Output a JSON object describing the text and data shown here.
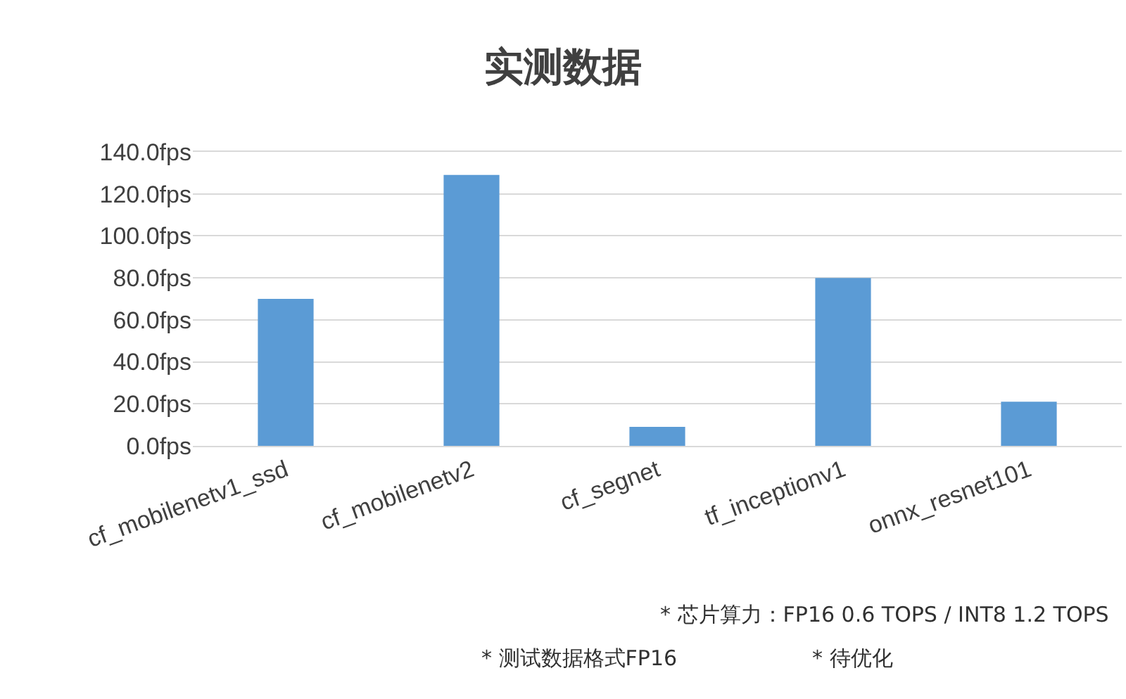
{
  "chart_data": {
    "type": "bar",
    "title": "实测数据",
    "categories": [
      "cf_mobilenetv1_ssd",
      "cf_mobilenetv2",
      "cf_segnet",
      "tf_inceptionv1",
      "onnx_resnet101"
    ],
    "values": [
      70,
      129,
      9,
      80,
      21
    ],
    "color": "#5b9bd5",
    "ylim": [
      0,
      140
    ],
    "yticks": [
      {
        "value": 0,
        "label": "0.0fps"
      },
      {
        "value": 20,
        "label": "20.0fps"
      },
      {
        "value": 40,
        "label": "40.0fps"
      },
      {
        "value": 60,
        "label": "60.0fps"
      },
      {
        "value": 80,
        "label": "80.0fps"
      },
      {
        "value": 100,
        "label": "100.0fps"
      },
      {
        "value": 120,
        "label": "120.0fps"
      },
      {
        "value": 140,
        "label": "140.0fps"
      }
    ],
    "grid": "y",
    "annotations": [
      "* 芯片算力：FP16 0.6 TOPS / INT8 1.2 TOPS",
      "* 测试数据格式FP16",
      "* 待优化"
    ]
  }
}
